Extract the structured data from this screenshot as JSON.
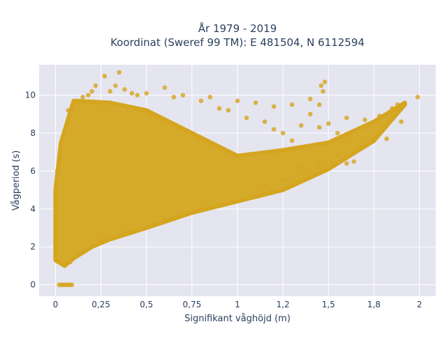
{
  "chart_data": {
    "type": "scatter",
    "title_line1": "År 1979 - 2019",
    "title_line2": "Koordinat (Sweref 99 TM): E 481504, N 6112594",
    "xlabel": "Signifikant våghöjd (m)",
    "ylabel": "Vågperiod (s)",
    "xlim": [
      -0.09,
      2.09
    ],
    "ylim": [
      -0.6,
      11.6
    ],
    "x_ticks": [
      0,
      0.25,
      0.5,
      0.75,
      1.0,
      1.25,
      1.5,
      1.75,
      2.0
    ],
    "x_tick_labels": [
      "0",
      "0,25",
      "0,5",
      "0,75",
      "1",
      "1,2",
      "1,5",
      "1,8",
      "2"
    ],
    "y_ticks": [
      0,
      2,
      4,
      6,
      8,
      10
    ],
    "y_tick_labels": [
      "0",
      "2",
      "4",
      "6",
      "8",
      "10"
    ],
    "grid": true,
    "colors": {
      "marker": "#d4a51f",
      "plot_bg": "#e5e5f0",
      "text": "#2a3f5f"
    },
    "dense_region": {
      "lower_boundary": [
        [
          0.0,
          1.3
        ],
        [
          0.05,
          1.0
        ],
        [
          0.1,
          1.4
        ],
        [
          0.2,
          2.0
        ],
        [
          0.3,
          2.4
        ],
        [
          0.5,
          3.0
        ],
        [
          0.75,
          3.8
        ],
        [
          1.0,
          4.4
        ],
        [
          1.25,
          5.0
        ],
        [
          1.5,
          6.1
        ],
        [
          1.75,
          7.6
        ],
        [
          1.92,
          9.5
        ]
      ],
      "upper_boundary": [
        [
          1.92,
          9.6
        ],
        [
          1.75,
          8.6
        ],
        [
          1.5,
          7.5
        ],
        [
          1.25,
          7.1
        ],
        [
          1.0,
          6.8
        ],
        [
          0.75,
          8.0
        ],
        [
          0.5,
          9.2
        ],
        [
          0.3,
          9.6
        ],
        [
          0.1,
          9.7
        ],
        [
          0.03,
          7.5
        ],
        [
          0.0,
          5.0
        ]
      ]
    },
    "scatter_points": [
      {
        "x": 0.35,
        "y": 11.2
      },
      {
        "x": 0.27,
        "y": 11.0
      },
      {
        "x": 0.22,
        "y": 10.5
      },
      {
        "x": 0.3,
        "y": 10.2
      },
      {
        "x": 0.38,
        "y": 10.3
      },
      {
        "x": 0.45,
        "y": 10.0
      },
      {
        "x": 0.5,
        "y": 10.1
      },
      {
        "x": 0.6,
        "y": 10.4
      },
      {
        "x": 0.7,
        "y": 10.0
      },
      {
        "x": 0.85,
        "y": 9.9
      },
      {
        "x": 0.2,
        "y": 10.2
      },
      {
        "x": 0.15,
        "y": 9.9
      },
      {
        "x": 1.48,
        "y": 10.7
      },
      {
        "x": 1.47,
        "y": 10.2
      },
      {
        "x": 1.46,
        "y": 10.5
      },
      {
        "x": 1.4,
        "y": 9.8
      },
      {
        "x": 1.45,
        "y": 9.5
      },
      {
        "x": 1.3,
        "y": 9.5
      },
      {
        "x": 1.2,
        "y": 9.4
      },
      {
        "x": 1.1,
        "y": 9.6
      },
      {
        "x": 1.05,
        "y": 8.8
      },
      {
        "x": 1.15,
        "y": 8.6
      },
      {
        "x": 1.0,
        "y": 9.7
      },
      {
        "x": 0.95,
        "y": 9.2
      },
      {
        "x": 1.35,
        "y": 8.4
      },
      {
        "x": 1.25,
        "y": 8.0
      },
      {
        "x": 1.45,
        "y": 8.3
      },
      {
        "x": 1.5,
        "y": 8.5
      },
      {
        "x": 1.55,
        "y": 8.0
      },
      {
        "x": 1.6,
        "y": 8.8
      },
      {
        "x": 1.3,
        "y": 7.6
      },
      {
        "x": 1.55,
        "y": 6.8
      },
      {
        "x": 1.6,
        "y": 6.4
      },
      {
        "x": 1.64,
        "y": 6.5
      },
      {
        "x": 1.52,
        "y": 6.5
      },
      {
        "x": 1.99,
        "y": 9.9
      },
      {
        "x": 1.82,
        "y": 7.7
      },
      {
        "x": 1.9,
        "y": 8.6
      },
      {
        "x": 1.4,
        "y": 9.0
      },
      {
        "x": 0.02,
        "y": 0.0
      },
      {
        "x": 0.03,
        "y": 0.0
      },
      {
        "x": 0.04,
        "y": 0.0
      },
      {
        "x": 0.05,
        "y": 0.0
      },
      {
        "x": 0.06,
        "y": 0.0
      },
      {
        "x": 0.07,
        "y": 0.0
      },
      {
        "x": 0.08,
        "y": 0.0
      },
      {
        "x": 0.09,
        "y": 0.0
      },
      {
        "x": 0.0,
        "y": 1.7
      },
      {
        "x": 0.0,
        "y": 2.3
      },
      {
        "x": 0.0,
        "y": 4.6
      },
      {
        "x": 0.01,
        "y": 6.0
      },
      {
        "x": 0.07,
        "y": 9.2
      },
      {
        "x": 0.1,
        "y": 9.6
      },
      {
        "x": 0.12,
        "y": 9.7
      },
      {
        "x": 0.18,
        "y": 10.0
      },
      {
        "x": 0.33,
        "y": 10.5
      },
      {
        "x": 0.42,
        "y": 10.1
      },
      {
        "x": 0.65,
        "y": 9.9
      },
      {
        "x": 0.8,
        "y": 9.7
      },
      {
        "x": 0.9,
        "y": 9.3
      },
      {
        "x": 1.2,
        "y": 8.2
      },
      {
        "x": 1.7,
        "y": 8.7
      },
      {
        "x": 1.78,
        "y": 8.9
      },
      {
        "x": 1.85,
        "y": 9.3
      },
      {
        "x": 1.88,
        "y": 9.5
      },
      {
        "x": 1.35,
        "y": 6.2
      },
      {
        "x": 1.45,
        "y": 6.3
      },
      {
        "x": 1.25,
        "y": 5.5
      },
      {
        "x": 1.15,
        "y": 5.2
      },
      {
        "x": 0.8,
        "y": 4.0
      },
      {
        "x": 0.6,
        "y": 3.4
      },
      {
        "x": 0.4,
        "y": 2.8
      },
      {
        "x": 0.25,
        "y": 2.3
      },
      {
        "x": 0.15,
        "y": 1.7
      },
      {
        "x": 0.08,
        "y": 1.2
      }
    ]
  }
}
